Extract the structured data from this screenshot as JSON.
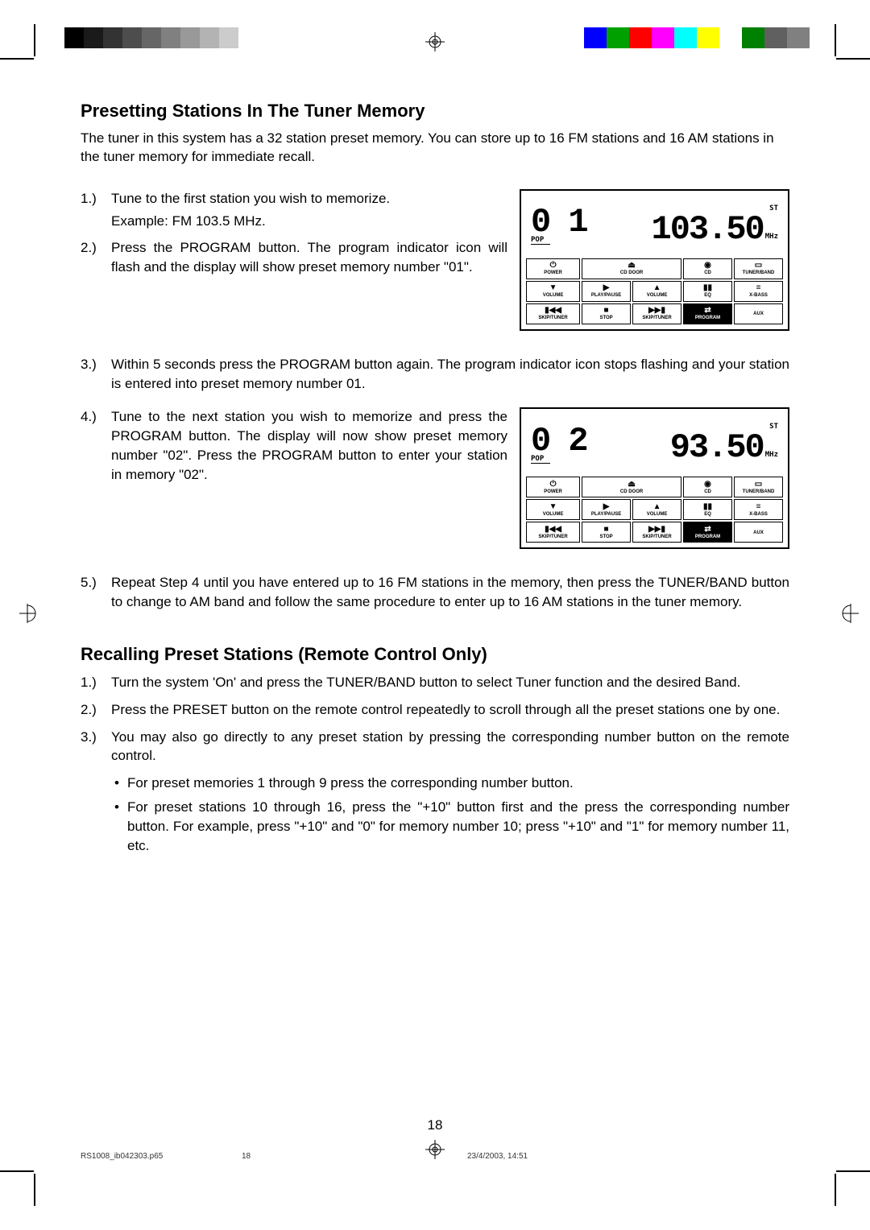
{
  "colorbar_left": [
    "#000000",
    "#1a1a1a",
    "#333333",
    "#4d4d4d",
    "#666666",
    "#808080",
    "#999999",
    "#b3b3b3",
    "#cccccc",
    "#ffffff"
  ],
  "colorbar_right": [
    "#0000ff",
    "#00a000",
    "#ff0000",
    "#ff00ff",
    "#00ffff",
    "#ffff00",
    "#ffffff",
    "#008000",
    "#606060",
    "#808080"
  ],
  "heading1": "Presetting Stations In The Tuner Memory",
  "intro": "The tuner in this system has a 32 station preset memory. You can store up to 16 FM stations and 16 AM stations in the tuner memory for immediate recall.",
  "steps1": [
    {
      "n": "1.)",
      "t": "Tune to the first station you wish to memorize.",
      "sub": "Example: FM 103.5 MHz."
    },
    {
      "n": "2.)",
      "t": "Press the PROGRAM button. The program indicator icon will flash and the display will show preset memory number \"01\"."
    }
  ],
  "step3": {
    "n": "3.)",
    "t": "Within 5 seconds press the PROGRAM button again. The program indicator icon stops flashing and your station is entered into preset memory number 01."
  },
  "step4": {
    "n": "4.)",
    "t": "Tune to the next station you wish to memorize and press the PROGRAM button. The display will now show preset memory number \"02\". Press the PROGRAM button to enter your station in memory \"02\"."
  },
  "step5": {
    "n": "5.)",
    "t": "Repeat Step 4 until you have entered up to 16 FM stations in the memory, then press the TUNER/BAND button to change to AM band and follow the same procedure to enter up to 16 AM stations in the tuner memory."
  },
  "heading2": "Recalling Preset Stations (Remote Control Only)",
  "steps2": [
    {
      "n": "1.)",
      "t": "Turn the system 'On' and press the TUNER/BAND button to select Tuner function and the desired Band."
    },
    {
      "n": "2.)",
      "t": "Press the PRESET button on the remote control repeatedly to scroll through all the preset stations one by one."
    },
    {
      "n": "3.)",
      "t": "You may also go directly to any preset station by pressing the corresponding number button on the remote control."
    }
  ],
  "bullets": [
    "For preset memories 1 through 9 press the corresponding number button.",
    "For preset stations 10 through 16, press the \"+10\" button first and the press the corresponding number button. For example, press \"+10\" and \"0\" for memory number 10; press \"+10\" and \"1\" for memory number 11, etc."
  ],
  "fig1": {
    "preset": "0 1",
    "freq": "103.50",
    "pop": "POP",
    "st": "ST",
    "unit": "MHz"
  },
  "fig2": {
    "preset": "0 2",
    "freq": " 93.50",
    "pop": "POP",
    "st": "ST",
    "unit": "MHz"
  },
  "buttons": [
    {
      "icon": "⏻",
      "label": "POWER"
    },
    {
      "icon": "⏏",
      "label": "CD DOOR",
      "span": 2
    },
    {
      "icon": "◉",
      "label": "CD"
    },
    {
      "icon": "▭",
      "label": "TUNER/BAND"
    },
    {
      "icon": "▼",
      "label": "VOLUME"
    },
    {
      "icon": "▶",
      "label": "PLAY/PAUSE"
    },
    {
      "icon": "▲",
      "label": "VOLUME"
    },
    {
      "icon": "▮▮",
      "label": "EQ"
    },
    {
      "icon": "≡",
      "label": "X-BASS"
    },
    {
      "icon": "▮◀◀",
      "label": "SKIP/TUNER"
    },
    {
      "icon": "■",
      "label": "STOP"
    },
    {
      "icon": "▶▶▮",
      "label": "SKIP/TUNER"
    },
    {
      "icon": "⇄",
      "label": "PROGRAM",
      "hl": true
    },
    {
      "icon": "",
      "label": "AUX"
    }
  ],
  "page_num": "18",
  "footer": {
    "file": "RS1008_ib042303.p65",
    "page": "18",
    "date": "23/4/2003, 14:51"
  }
}
